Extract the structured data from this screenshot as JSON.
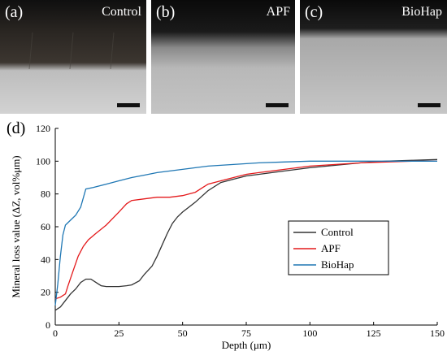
{
  "panels": [
    {
      "tag": "(a)",
      "name": "Control"
    },
    {
      "tag": "(b)",
      "name": "APF"
    },
    {
      "tag": "(c)",
      "name": "BioHap"
    }
  ],
  "chart_data": {
    "type": "line",
    "panel_tag": "(d)",
    "xlabel": "Depth (μm)",
    "ylabel": "Mineral loss value (ΔZ, vol%μm)",
    "xlim": [
      0,
      150
    ],
    "ylim": [
      0,
      120
    ],
    "xticks": [
      0,
      25,
      50,
      75,
      100,
      125,
      150
    ],
    "yticks": [
      0,
      20,
      40,
      60,
      80,
      100,
      120
    ],
    "legend_position": "lower-right",
    "grid": false,
    "series": [
      {
        "name": "Control",
        "color": "#333333",
        "points": [
          [
            0,
            9
          ],
          [
            2,
            11
          ],
          [
            4,
            15
          ],
          [
            6,
            19
          ],
          [
            8,
            22
          ],
          [
            10,
            26
          ],
          [
            12,
            28
          ],
          [
            14,
            28
          ],
          [
            16,
            26
          ],
          [
            18,
            24
          ],
          [
            20,
            23.5
          ],
          [
            25,
            23.5
          ],
          [
            28,
            24
          ],
          [
            30,
            24.5
          ],
          [
            33,
            27
          ],
          [
            35,
            31
          ],
          [
            38,
            36
          ],
          [
            40,
            42
          ],
          [
            42,
            49
          ],
          [
            44,
            56
          ],
          [
            46,
            62
          ],
          [
            48,
            66
          ],
          [
            50,
            69
          ],
          [
            55,
            75
          ],
          [
            60,
            82
          ],
          [
            65,
            87
          ],
          [
            70,
            89
          ],
          [
            75,
            91
          ],
          [
            80,
            92
          ],
          [
            90,
            94
          ],
          [
            100,
            96
          ],
          [
            110,
            97.5
          ],
          [
            120,
            99
          ],
          [
            130,
            100
          ],
          [
            140,
            100.5
          ],
          [
            150,
            101
          ]
        ]
      },
      {
        "name": "APF",
        "color": "#e41a1c",
        "points": [
          [
            0,
            16
          ],
          [
            2,
            17
          ],
          [
            4,
            19
          ],
          [
            5,
            24
          ],
          [
            7,
            33
          ],
          [
            9,
            42
          ],
          [
            11,
            48
          ],
          [
            13,
            52
          ],
          [
            16,
            56
          ],
          [
            20,
            61
          ],
          [
            25,
            69
          ],
          [
            28,
            74
          ],
          [
            30,
            76
          ],
          [
            35,
            77
          ],
          [
            40,
            78
          ],
          [
            45,
            78
          ],
          [
            50,
            79
          ],
          [
            55,
            81
          ],
          [
            58,
            84
          ],
          [
            60,
            86
          ],
          [
            65,
            88
          ],
          [
            70,
            90
          ],
          [
            75,
            92
          ],
          [
            80,
            93
          ],
          [
            90,
            95
          ],
          [
            100,
            97
          ],
          [
            110,
            98
          ],
          [
            120,
            99
          ],
          [
            130,
            99.5
          ],
          [
            140,
            100
          ],
          [
            150,
            100
          ]
        ]
      },
      {
        "name": "BioHap",
        "color": "#1f77b4",
        "points": [
          [
            0,
            12
          ],
          [
            1,
            25
          ],
          [
            2,
            42
          ],
          [
            3,
            55
          ],
          [
            4,
            61
          ],
          [
            6,
            64
          ],
          [
            8,
            67
          ],
          [
            10,
            72
          ],
          [
            12,
            83
          ],
          [
            15,
            84
          ],
          [
            20,
            86
          ],
          [
            25,
            88
          ],
          [
            30,
            90
          ],
          [
            35,
            91.5
          ],
          [
            40,
            93
          ],
          [
            45,
            94
          ],
          [
            50,
            95
          ],
          [
            55,
            96
          ],
          [
            60,
            97
          ],
          [
            70,
            98
          ],
          [
            80,
            99
          ],
          [
            90,
            99.5
          ],
          [
            100,
            100
          ],
          [
            110,
            100
          ],
          [
            120,
            100
          ],
          [
            130,
            100
          ],
          [
            140,
            100
          ],
          [
            150,
            100
          ]
        ]
      }
    ]
  }
}
